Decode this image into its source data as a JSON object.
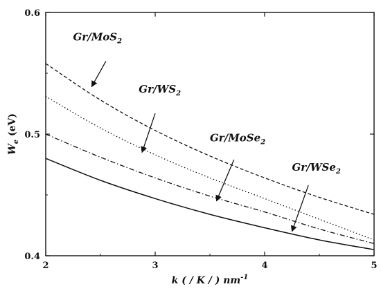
{
  "chart_data": {
    "type": "line",
    "title": "",
    "xlabel": "k ( / K / ) nm",
    "xlabel_superscript": "-1",
    "ylabel": "W",
    "ylabel_subscript": "e",
    "ylabel_unit": " (eV)",
    "xlim": [
      2,
      5
    ],
    "ylim": [
      0.4,
      0.6
    ],
    "xticks": [
      2,
      3,
      4,
      5
    ],
    "yticks": [
      0.4,
      0.5,
      0.6
    ],
    "xtick_labels": [
      "2",
      "3",
      "4",
      "5"
    ],
    "ytick_labels": [
      "0.4",
      "0.5",
      "0.6"
    ],
    "grid": false,
    "series": [
      {
        "name": "Gr/MoS2",
        "label_main": "Gr/MoS",
        "label_sub": "2",
        "style": "dashed",
        "x": [
          2.0,
          2.5,
          3.0,
          3.5,
          4.0,
          4.5,
          5.0
        ],
        "y": [
          0.558,
          0.528,
          0.503,
          0.482,
          0.464,
          0.448,
          0.434
        ]
      },
      {
        "name": "Gr/WS2",
        "label_main": "Gr/WS",
        "label_sub": "2",
        "style": "dotted",
        "x": [
          2.0,
          2.5,
          3.0,
          3.5,
          4.0,
          4.5,
          5.0
        ],
        "y": [
          0.531,
          0.505,
          0.483,
          0.464,
          0.447,
          0.43,
          0.413
        ]
      },
      {
        "name": "Gr/MoSe2",
        "label_main": "Gr/MoSe",
        "label_sub": "2",
        "style": "dashdot",
        "x": [
          2.0,
          2.5,
          3.0,
          3.5,
          4.0,
          4.5,
          5.0
        ],
        "y": [
          0.5,
          0.481,
          0.464,
          0.449,
          0.436,
          0.422,
          0.41
        ]
      },
      {
        "name": "Gr/WSe2",
        "label_main": "Gr/WSe",
        "label_sub": "2",
        "style": "solid",
        "x": [
          2.0,
          2.5,
          3.0,
          3.5,
          4.0,
          4.5,
          5.0
        ],
        "y": [
          0.48,
          0.462,
          0.447,
          0.434,
          0.423,
          0.413,
          0.405
        ]
      }
    ],
    "annotations": [
      {
        "series": "Gr/MoS2",
        "text_main": "Gr/MoS",
        "text_sub": "2",
        "text_at": [
          2.25,
          0.577
        ],
        "arrow_from": [
          2.55,
          0.56
        ],
        "arrow_to": [
          2.42,
          0.539
        ]
      },
      {
        "series": "Gr/WS2",
        "text_main": "Gr/WS",
        "text_sub": "2",
        "text_at": [
          2.85,
          0.534
        ],
        "arrow_from": [
          3.0,
          0.517
        ],
        "arrow_to": [
          2.88,
          0.485
        ]
      },
      {
        "series": "Gr/MoSe2",
        "text_main": "Gr/MoSe",
        "text_sub": "2",
        "text_at": [
          3.5,
          0.494
        ],
        "arrow_from": [
          3.72,
          0.479
        ],
        "arrow_to": [
          3.56,
          0.445
        ]
      },
      {
        "series": "Gr/WSe2",
        "text_main": "Gr/WSe",
        "text_sub": "2",
        "text_at": [
          4.25,
          0.47
        ],
        "arrow_from": [
          4.4,
          0.458
        ],
        "arrow_to": [
          4.25,
          0.42
        ]
      }
    ]
  }
}
